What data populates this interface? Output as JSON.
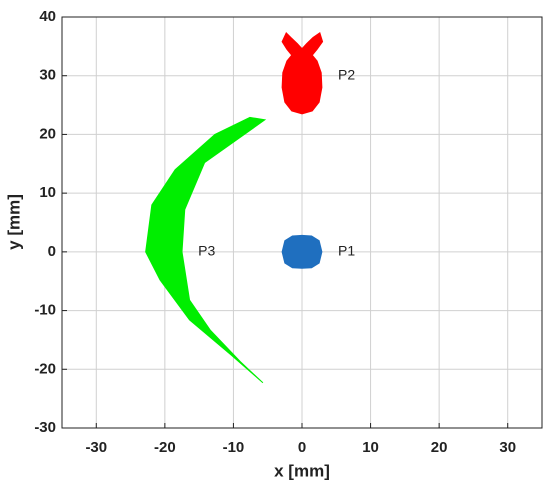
{
  "chart_data": {
    "type": "area",
    "x_label": "x [mm]",
    "y_label": "y [mm]",
    "xlim": [
      -35,
      35
    ],
    "ylim": [
      -30,
      40
    ],
    "xticks": [
      -30,
      -20,
      -10,
      0,
      10,
      20,
      30
    ],
    "yticks": [
      -30,
      -20,
      -10,
      0,
      10,
      20,
      30,
      40
    ],
    "grid": true,
    "series": [
      {
        "color": "#1f6fbf",
        "x": [
          2.9,
          2.5,
          1.4,
          0,
          -1.4,
          -2.5,
          -2.9,
          -2.5,
          -1.4,
          0,
          1.4,
          2.5
        ],
        "y": [
          0,
          1.9,
          2.7,
          2.8,
          2.7,
          1.9,
          0,
          -1.9,
          -2.7,
          -2.8,
          -2.7,
          -1.9
        ]
      },
      {
        "color": "#ff0000",
        "x": [
          0,
          1.5,
          2.5,
          2.9,
          2.8,
          2.2,
          1.5,
          2.2,
          3,
          2.6,
          1.6,
          0.7,
          0,
          -0.7,
          -1.6,
          -2.3,
          -2.9,
          -2.2,
          -1.5,
          -2.2,
          -2.8,
          -2.9,
          -2.5,
          -1.5
        ],
        "y": [
          23.5,
          24,
          25.5,
          28,
          30.5,
          32.5,
          33.5,
          34.5,
          35.8,
          37.3,
          36.5,
          35.5,
          34.6,
          35.5,
          36.5,
          37.3,
          35.8,
          34.5,
          33.5,
          32.5,
          30.5,
          28,
          25.5,
          24
        ]
      },
      {
        "color": "#00ee00",
        "x": [
          -5.4,
          -14.2,
          -17.1,
          -17.5,
          -16.4,
          -13.4,
          -9,
          -5.7,
          -10.4,
          -16.4,
          -20.7,
          -22.8,
          -21.9,
          -18.5,
          -12.7,
          -7.6
        ],
        "y": [
          22.5,
          15.2,
          7.2,
          0,
          -8.2,
          -13.3,
          -18.7,
          -22.3,
          -17.5,
          -11.6,
          -4.8,
          0,
          8,
          14,
          20,
          22.9
        ]
      }
    ],
    "annotations": [
      {
        "text": "P1",
        "x": 6.5,
        "y": 0
      },
      {
        "text": "P2",
        "x": 6.5,
        "y": 30
      },
      {
        "text": "P3",
        "x": -13.9,
        "y": 0
      }
    ]
  }
}
